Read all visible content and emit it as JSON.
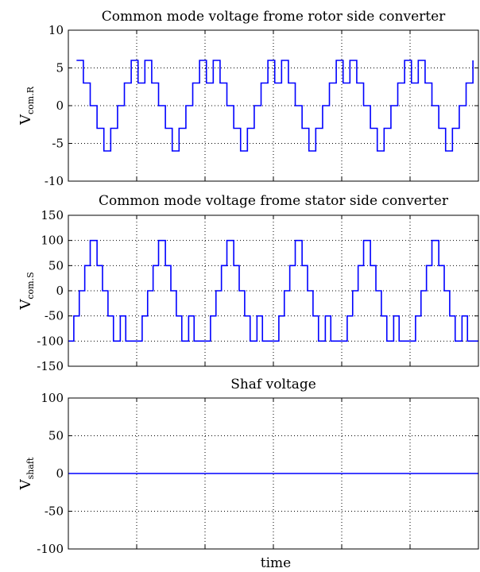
{
  "figure": {
    "xlabel": "time"
  },
  "chart_data": [
    {
      "type": "line",
      "title": "Common mode voltage frome rotor side converter",
      "ylabel_main": "V",
      "ylabel_sub": "com.R",
      "ylim": [
        -10,
        10
      ],
      "yticks": [
        10,
        5,
        0,
        -5,
        -10
      ],
      "ytick_labels": [
        "10",
        "5",
        "0",
        "-5",
        "-10"
      ],
      "xlim": [
        0,
        6
      ],
      "xgrid": [
        1,
        2,
        3,
        4,
        5
      ],
      "grid": true,
      "color": "#0000ff",
      "waveform": {
        "start": 0.12,
        "end": 6.0,
        "period": 1.0,
        "points": [
          [
            0.0,
            6
          ],
          [
            0.1,
            6
          ],
          [
            0.1,
            3
          ],
          [
            0.2,
            3
          ],
          [
            0.2,
            0
          ],
          [
            0.3,
            0
          ],
          [
            0.3,
            -3
          ],
          [
            0.4,
            -3
          ],
          [
            0.4,
            -6
          ],
          [
            0.5,
            -6
          ],
          [
            0.5,
            -3
          ],
          [
            0.6,
            -3
          ],
          [
            0.6,
            0
          ],
          [
            0.7,
            0
          ],
          [
            0.7,
            3
          ],
          [
            0.8,
            3
          ],
          [
            0.8,
            6
          ],
          [
            0.9,
            6
          ],
          [
            0.9,
            3
          ],
          [
            1.0,
            3
          ]
        ]
      }
    },
    {
      "type": "line",
      "title": "Common mode voltage frome stator side converter",
      "ylabel_main": "V",
      "ylabel_sub": "com.S",
      "ylim": [
        -150,
        150
      ],
      "yticks": [
        150,
        100,
        50,
        0,
        -50,
        -100,
        -150
      ],
      "ytick_labels": [
        "150",
        "100",
        "50",
        "0",
        "-50",
        "-100",
        "-150"
      ],
      "xlim": [
        0,
        6
      ],
      "xgrid": [
        1,
        2,
        3,
        4,
        5
      ],
      "grid": true,
      "color": "#0000ff",
      "waveform": {
        "start": 0.0,
        "end": 6.0,
        "period": 1.0,
        "points": [
          [
            0.0,
            -100
          ],
          [
            0.08,
            -100
          ],
          [
            0.08,
            -50
          ],
          [
            0.16,
            -50
          ],
          [
            0.16,
            0
          ],
          [
            0.24,
            0
          ],
          [
            0.24,
            50
          ],
          [
            0.32,
            50
          ],
          [
            0.32,
            100
          ],
          [
            0.42,
            100
          ],
          [
            0.42,
            50
          ],
          [
            0.5,
            50
          ],
          [
            0.5,
            0
          ],
          [
            0.58,
            0
          ],
          [
            0.58,
            -50
          ],
          [
            0.66,
            -50
          ],
          [
            0.66,
            -100
          ],
          [
            0.76,
            -100
          ],
          [
            0.76,
            -50
          ],
          [
            0.84,
            -50
          ],
          [
            0.84,
            -100
          ],
          [
            1.0,
            -100
          ]
        ]
      }
    },
    {
      "type": "line",
      "title": "Shaf voltage",
      "ylabel_main": "V",
      "ylabel_sub": "shaft",
      "ylim": [
        -100,
        100
      ],
      "yticks": [
        100,
        50,
        0,
        -50,
        -100
      ],
      "ytick_labels": [
        "100",
        "50",
        "0",
        "-50",
        "-100"
      ],
      "xlim": [
        0,
        6
      ],
      "xgrid": [
        1,
        2,
        3,
        4,
        5
      ],
      "grid": true,
      "color": "#0000ff",
      "constant": 0
    }
  ]
}
